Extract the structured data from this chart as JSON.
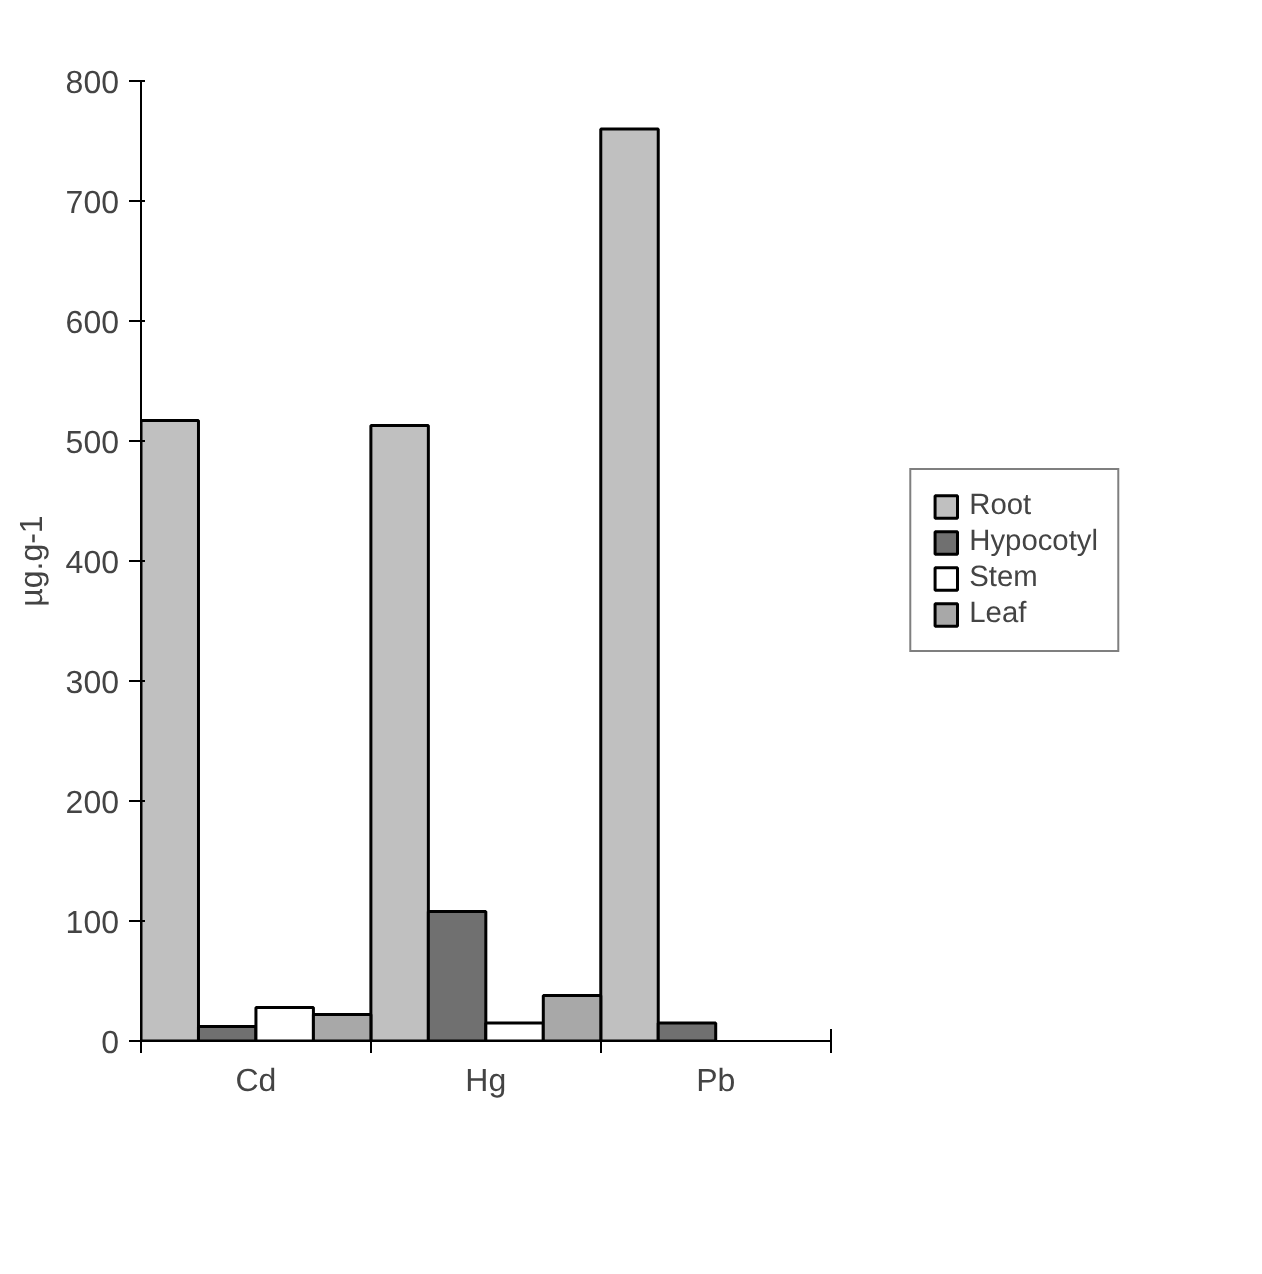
{
  "chart_data": {
    "type": "bar",
    "ylabel": "µg.g-1",
    "categories": [
      "Cd",
      "Hg",
      "Pb"
    ],
    "series": [
      {
        "name": "Root",
        "color": "#c0c0c0",
        "values": [
          517,
          513,
          760
        ]
      },
      {
        "name": "Hypocotyl",
        "color": "#707070",
        "values": [
          12,
          108,
          15
        ]
      },
      {
        "name": "Stem",
        "color": "#ffffff",
        "values": [
          28,
          15,
          null
        ]
      },
      {
        "name": "Leaf",
        "color": "#a8a8a8",
        "values": [
          22,
          38,
          null
        ]
      }
    ],
    "ylim": [
      0,
      800
    ],
    "yticks": [
      0,
      100,
      200,
      300,
      400,
      500,
      600,
      700,
      800
    ],
    "grid": false,
    "legend": "right"
  }
}
